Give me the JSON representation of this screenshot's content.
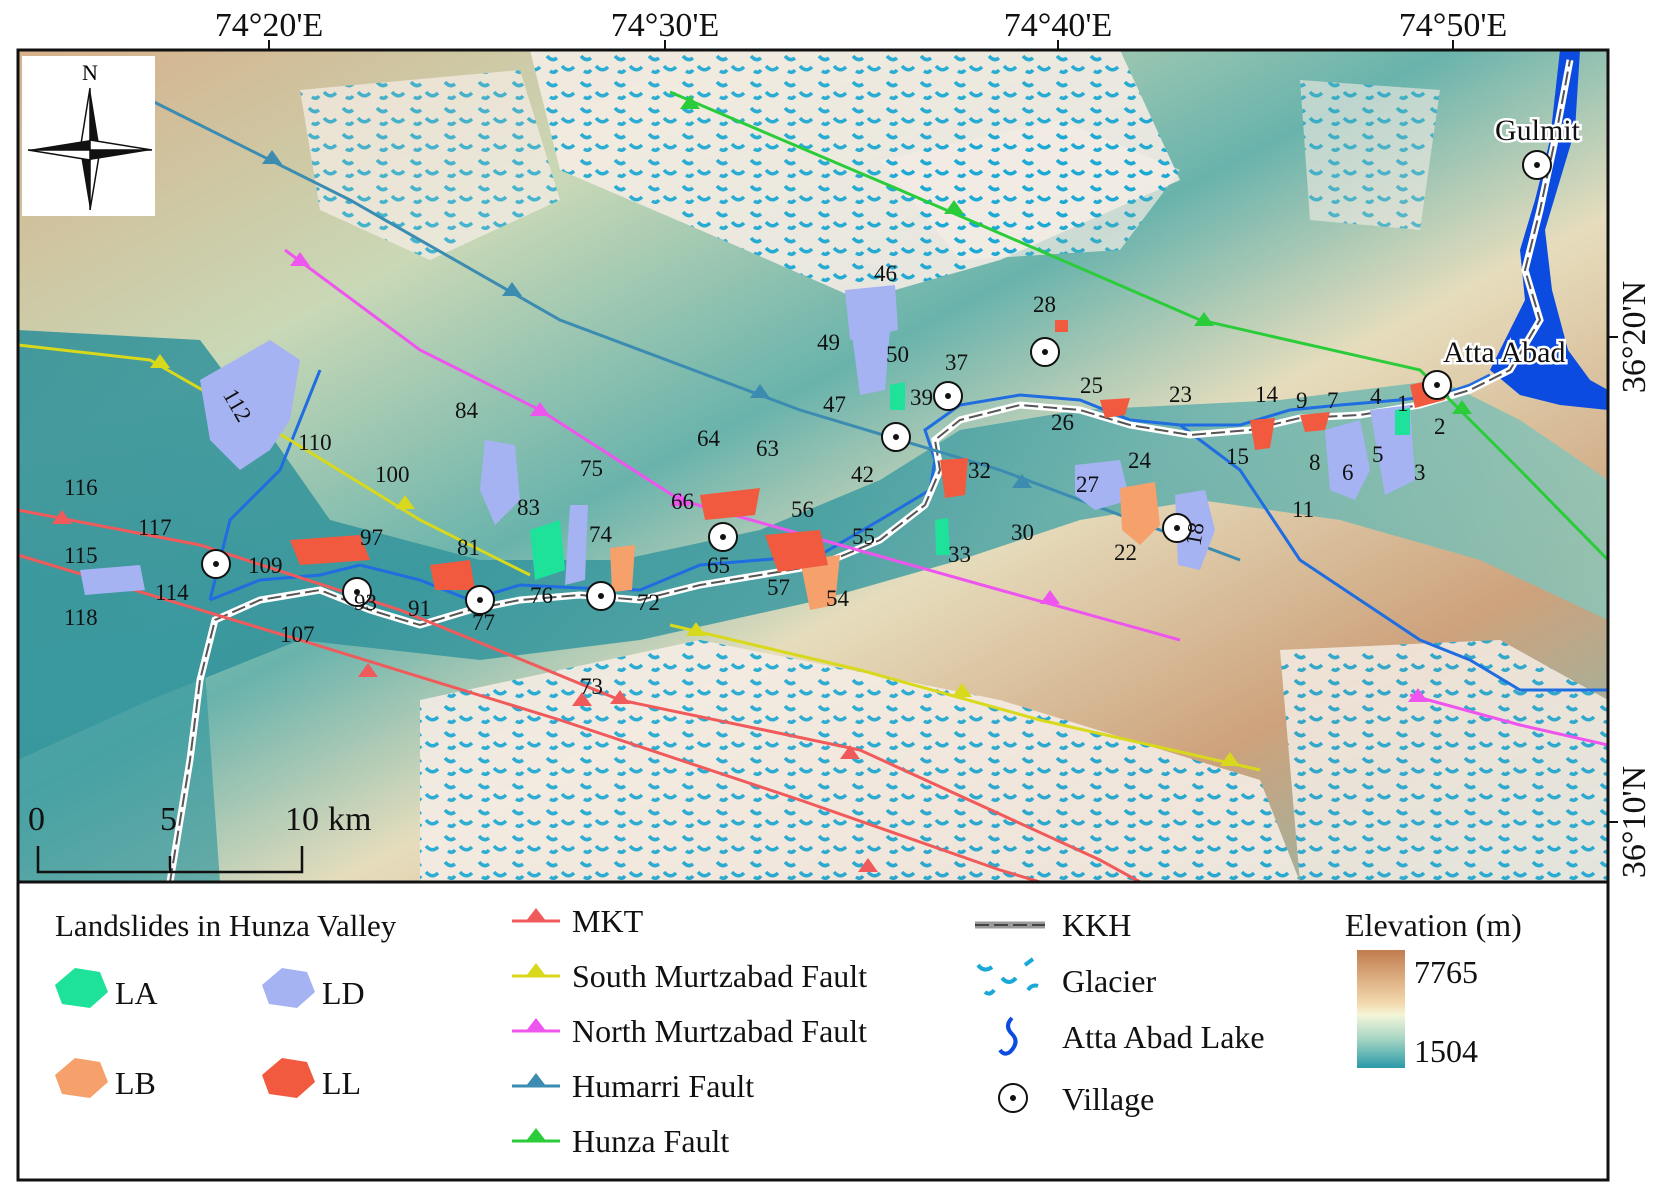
{
  "map": {
    "lon_ticks": [
      "74°20'E",
      "74°30'E",
      "74°40'E",
      "74°50'E"
    ],
    "lat_ticks": [
      "36°20'N",
      "36°10'N"
    ],
    "north_arrow": {
      "label": "N",
      "icon": "north-arrow-icon"
    },
    "scale_bar": {
      "labels": [
        "0",
        "5",
        "10"
      ],
      "unit": "km"
    },
    "places": [
      "Gulmit",
      "Atta Abad"
    ],
    "landslide_ids": [
      "1",
      "2",
      "3",
      "4",
      "5",
      "6",
      "7",
      "8",
      "9",
      "11",
      "14",
      "15",
      "18",
      "22",
      "23",
      "24",
      "25",
      "26",
      "27",
      "28",
      "30",
      "32",
      "33",
      "37",
      "39",
      "42",
      "46",
      "47",
      "49",
      "50",
      "54",
      "55",
      "56",
      "57",
      "63",
      "64",
      "65",
      "66",
      "72",
      "73",
      "74",
      "75",
      "76",
      "77",
      "81",
      "83",
      "84",
      "91",
      "93",
      "97",
      "100",
      "107",
      "109",
      "110",
      "112",
      "114",
      "115",
      "116",
      "117",
      "118"
    ]
  },
  "legend": {
    "landslides": {
      "title": "Landslides in Hunza Valley",
      "classes": [
        {
          "label": "LA",
          "color": "#1ee29a"
        },
        {
          "label": "LD",
          "color": "#a5b3f2"
        },
        {
          "label": "LB",
          "color": "#f6a06c"
        },
        {
          "label": "LL",
          "color": "#f15a3e"
        }
      ]
    },
    "faults": [
      {
        "label": "MKT",
        "color": "#f15a5a"
      },
      {
        "label": "South Murtzabad Fault",
        "color": "#d8d81c"
      },
      {
        "label": "North Murtzabad Fault",
        "color": "#ee55ee"
      },
      {
        "label": "Humarri Fault",
        "color": "#3b8cb0"
      },
      {
        "label": "Hunza Fault",
        "color": "#2bcc3a"
      }
    ],
    "features": [
      {
        "label": "KKH",
        "icon": "road-icon"
      },
      {
        "label": "Glacier",
        "icon": "glacier-icon"
      },
      {
        "label": "Atta Abad Lake",
        "icon": "lake-icon"
      },
      {
        "label": "Village",
        "icon": "village-icon"
      }
    ],
    "elevation": {
      "title": "Elevation (m)",
      "max": "7765",
      "min": "1504"
    }
  }
}
